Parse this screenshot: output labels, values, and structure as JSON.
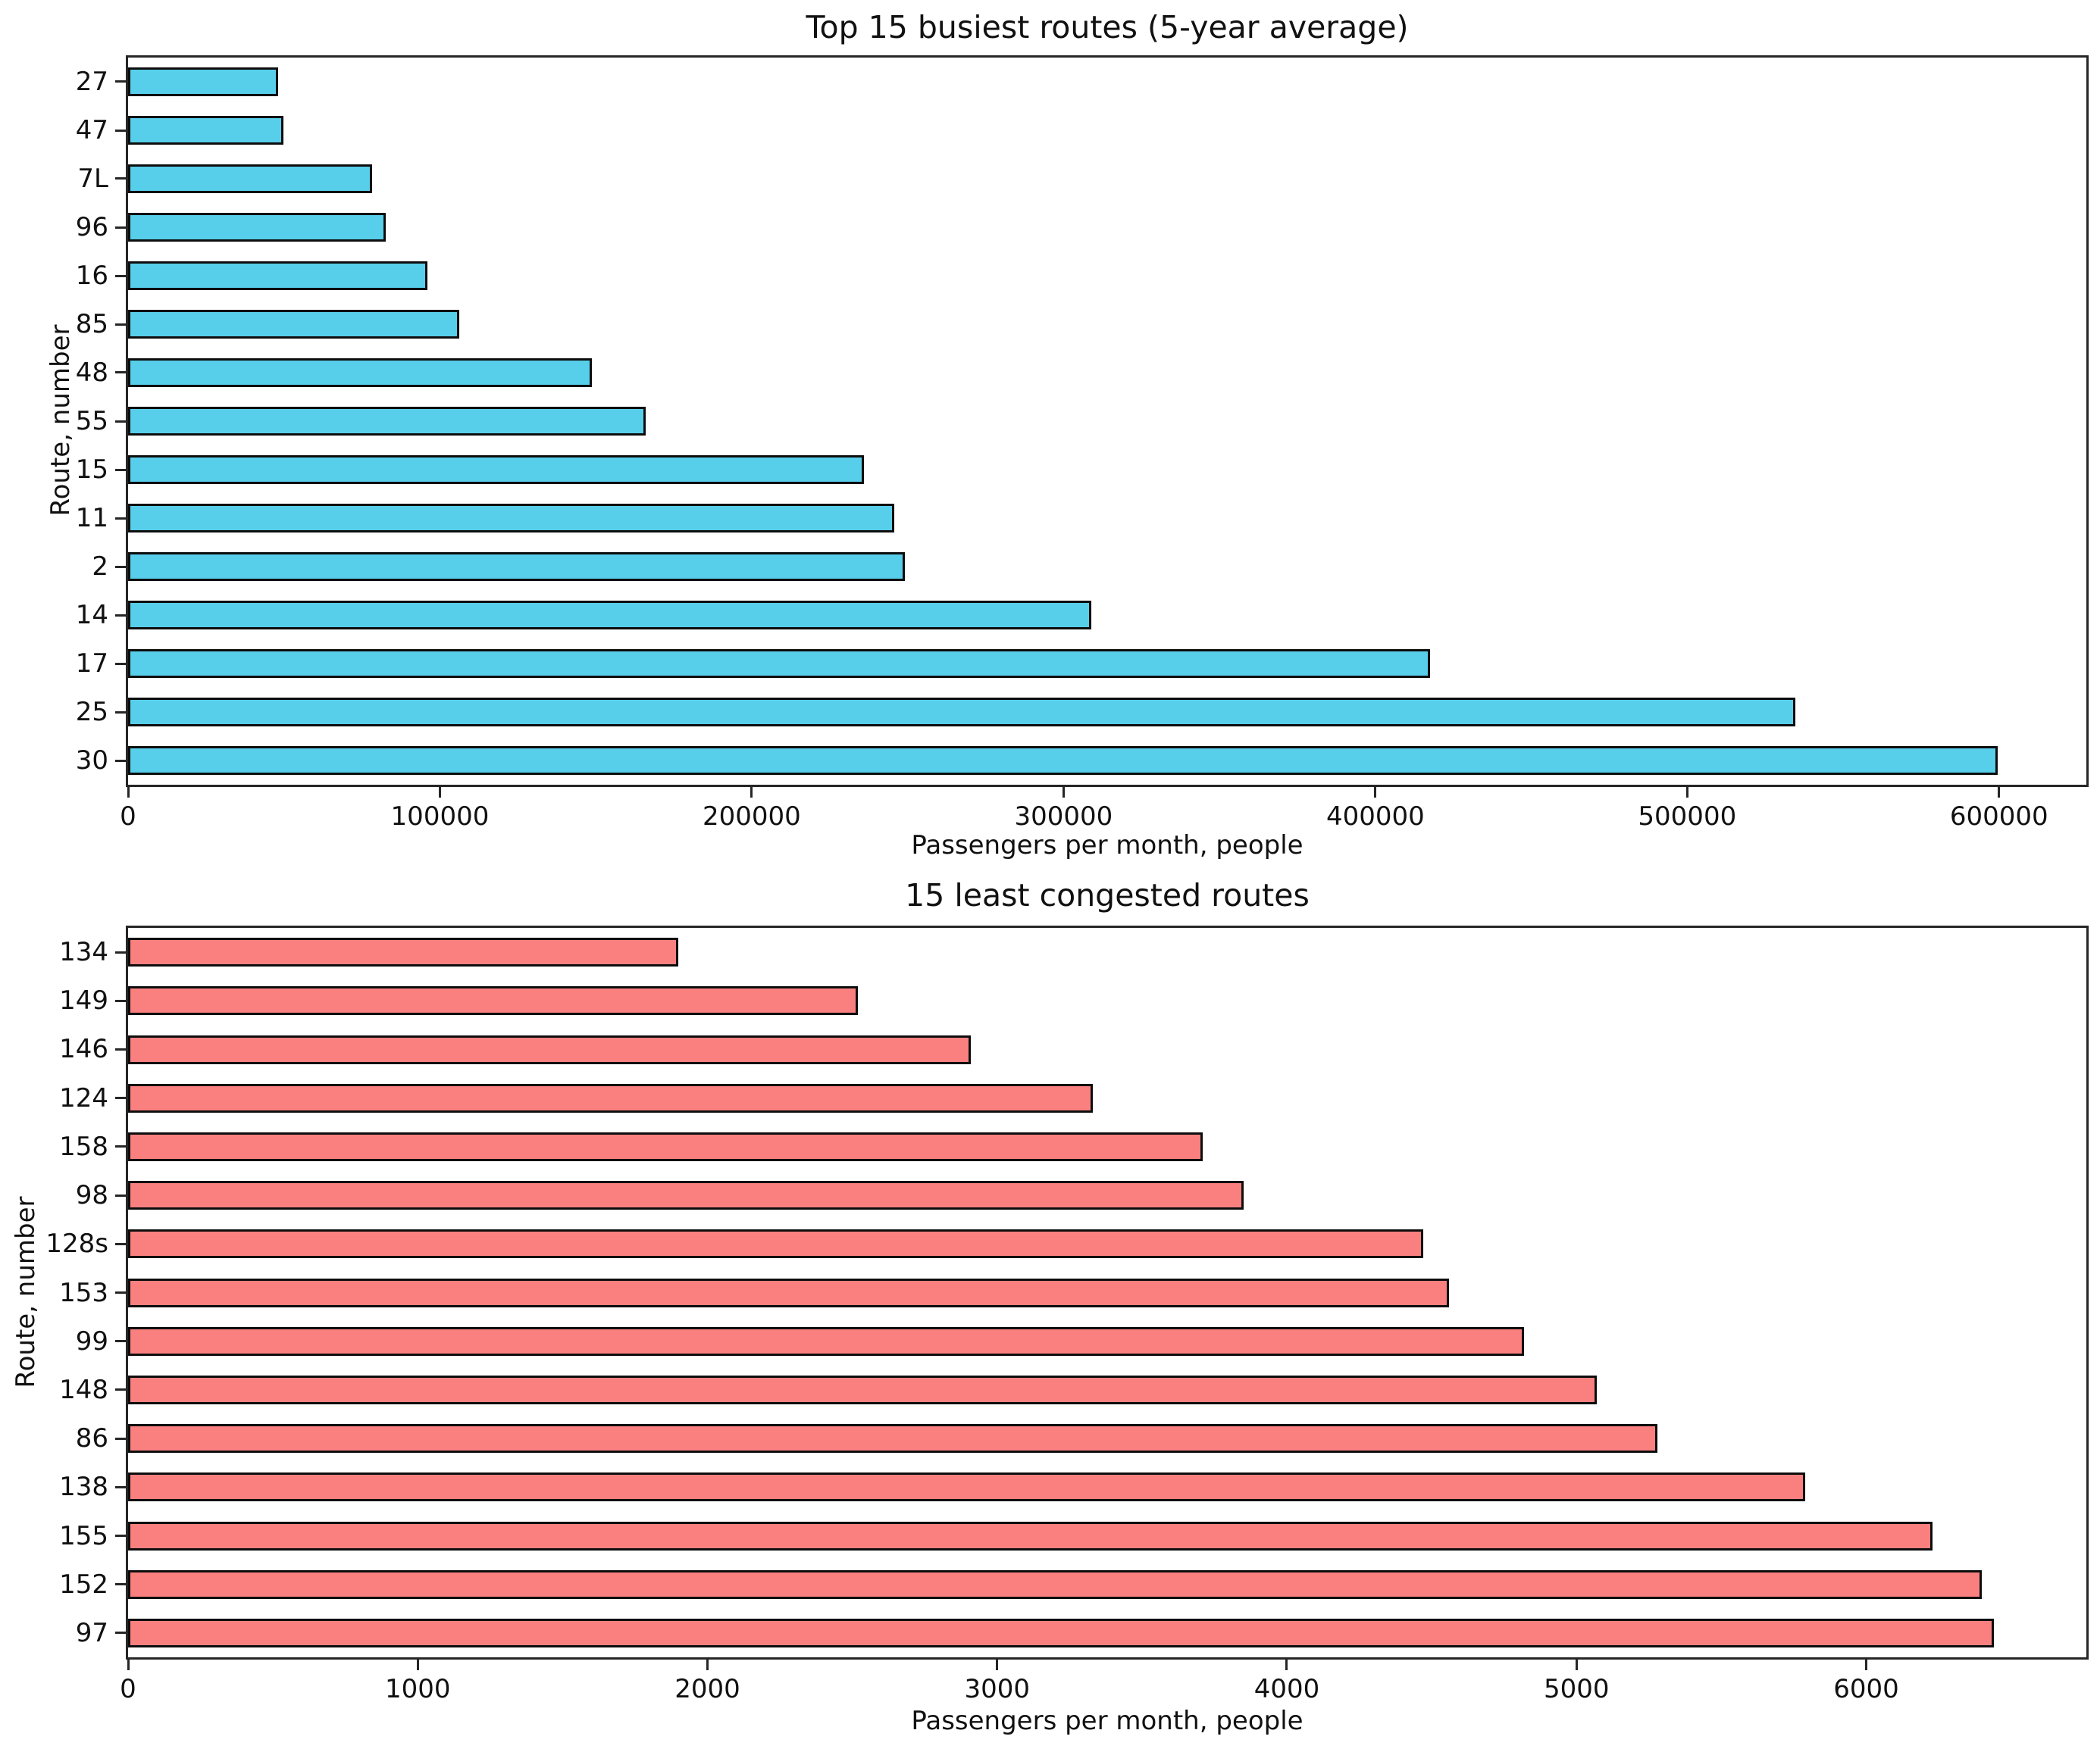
{
  "figure": {
    "background": "#ffffff",
    "spine_color": "#262626",
    "bar_edge_color": "#0d0d0d"
  },
  "chart_data": [
    {
      "type": "bar",
      "orientation": "horizontal",
      "title": "Top 15 busiest routes (5-year average)",
      "xlabel": "Passengers per month, people",
      "ylabel": "Route, number",
      "categories": [
        "27",
        "47",
        "7L",
        "96",
        "16",
        "85",
        "48",
        "55",
        "15",
        "11",
        "2",
        "14",
        "17",
        "25",
        "30"
      ],
      "values": [
        48200,
        49900,
        78300,
        82600,
        95900,
        106200,
        148800,
        166000,
        236100,
        245600,
        249000,
        308800,
        417600,
        534600,
        599600
      ],
      "bar_color": "#57CEEA",
      "xlim": [
        0,
        628000
      ],
      "xticks": [
        0,
        100000,
        200000,
        300000,
        400000,
        500000,
        600000
      ],
      "grid": false,
      "legend": null,
      "bar_height_fraction": 0.6
    },
    {
      "type": "bar",
      "orientation": "horizontal",
      "title": "15 least congested routes",
      "xlabel": "Passengers per month, people",
      "ylabel": "Route, number",
      "categories": [
        "134",
        "149",
        "146",
        "124",
        "158",
        "98",
        "128s",
        "153",
        "99",
        "148",
        "86",
        "138",
        "155",
        "152",
        "97"
      ],
      "values": [
        1900,
        2520,
        2910,
        3330,
        3710,
        3850,
        4470,
        4560,
        4820,
        5070,
        5280,
        5790,
        6230,
        6400,
        6440
      ],
      "bar_color": "#FA8080",
      "xlim": [
        0,
        6760
      ],
      "xticks": [
        0,
        1000,
        2000,
        3000,
        4000,
        5000,
        6000
      ],
      "grid": false,
      "legend": null,
      "bar_height_fraction": 0.6
    }
  ]
}
